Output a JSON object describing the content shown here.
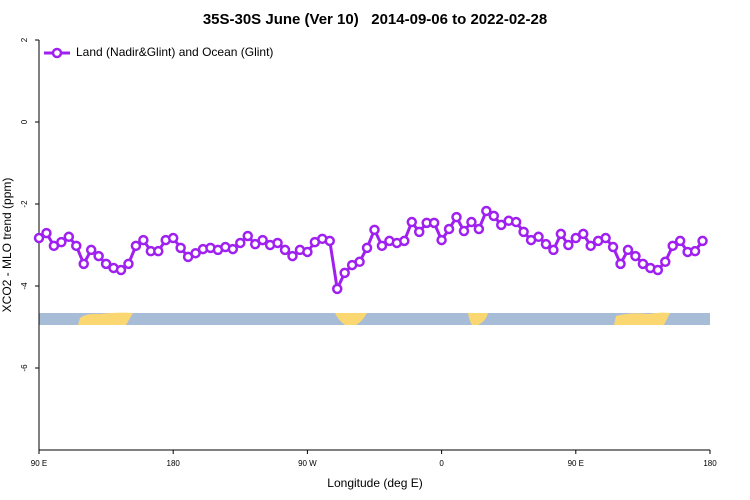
{
  "chart_data": {
    "type": "line",
    "title": "35S-30S June (Ver 10)   2014-09-06 to 2022-02-28",
    "xlabel": "Longitude (deg E)",
    "ylabel": "XCO2 - MLO trend (ppm)",
    "x": [
      90,
      95,
      100,
      105,
      110,
      115,
      120,
      125,
      130,
      135,
      140,
      145,
      150,
      155,
      160,
      165,
      170,
      175,
      180,
      185,
      190,
      195,
      200,
      205,
      210,
      215,
      220,
      225,
      230,
      235,
      240,
      245,
      250,
      255,
      260,
      265,
      270,
      275,
      280,
      285,
      290,
      295,
      300,
      305,
      310,
      315,
      320,
      325,
      330,
      335,
      340,
      345,
      350,
      355,
      360,
      365,
      370,
      375,
      380,
      385,
      390,
      395,
      400,
      405,
      410,
      415,
      420,
      425,
      430,
      435,
      440,
      445,
      450,
      455,
      460,
      465,
      470,
      475,
      480,
      485,
      490,
      495,
      500,
      505,
      510,
      515,
      520,
      525,
      530,
      535
    ],
    "series": [
      {
        "name": "Land (Nadir&Glint) and Ocean (Glint)",
        "color": "#a020f0",
        "values": [
          -2.83,
          -2.71,
          -3.02,
          -2.93,
          -2.8,
          -3.02,
          -3.46,
          -3.12,
          -3.27,
          -3.46,
          -3.56,
          -3.61,
          -3.46,
          -3.02,
          -2.88,
          -3.15,
          -3.15,
          -2.88,
          -2.83,
          -3.07,
          -3.29,
          -3.2,
          -3.1,
          -3.07,
          -3.12,
          -3.05,
          -3.1,
          -2.95,
          -2.78,
          -2.98,
          -2.88,
          -3.0,
          -2.95,
          -3.12,
          -3.27,
          -3.12,
          -3.17,
          -2.93,
          -2.85,
          -2.9,
          -4.07,
          -3.68,
          -3.49,
          -3.41,
          -3.07,
          -2.63,
          -3.02,
          -2.9,
          -2.95,
          -2.9,
          -2.44,
          -2.68,
          -2.46,
          -2.46,
          -2.88,
          -2.61,
          -2.32,
          -2.66,
          -2.44,
          -2.61,
          -2.17,
          -2.29,
          -2.51,
          -2.41,
          -2.44,
          -2.68,
          -2.88,
          -2.8,
          -2.98,
          -3.12,
          -2.73,
          -3.0,
          -2.83,
          -2.73,
          -3.02,
          -2.9,
          -2.83,
          -3.05,
          -3.46,
          -3.12,
          -3.27,
          -3.46,
          -3.56,
          -3.61,
          -3.41,
          -3.02,
          -2.9,
          -3.17,
          -3.15,
          -2.9
        ]
      }
    ],
    "xlim": [
      90,
      540
    ],
    "xticks": [
      {
        "value": 90,
        "label": "90 E"
      },
      180,
      {
        "value": 270,
        "label": "90 W"
      },
      {
        "value": 360,
        "label": "0"
      },
      {
        "value": 450,
        "label": "90 E"
      },
      {
        "value": 540,
        "label": "180"
      }
    ],
    "ylim": [
      -8,
      2
    ],
    "yticks": [
      2,
      0,
      -2,
      -4,
      -6
    ],
    "legend": "top-left"
  }
}
